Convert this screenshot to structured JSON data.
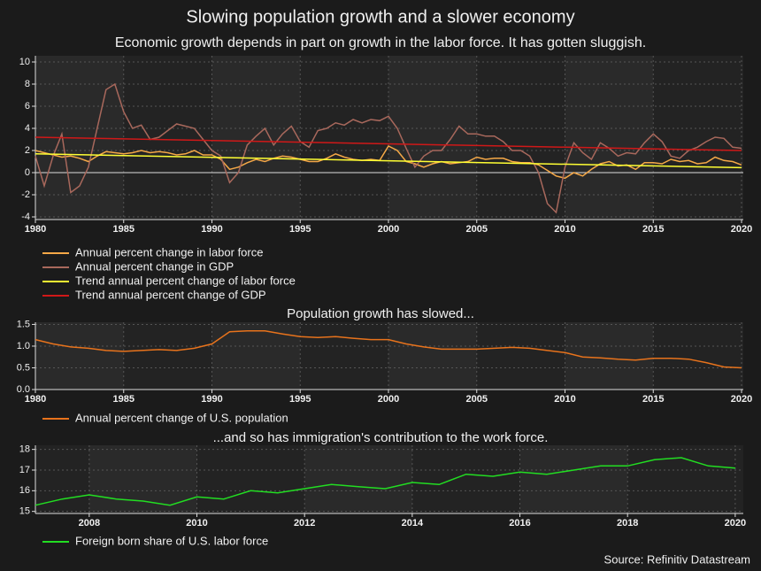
{
  "chart_data": [
    {
      "type": "line",
      "title": "Slowing population growth and a slower economy",
      "subtitle": "Economic growth depends in part on growth in the labor force. It has gotten sluggish.",
      "xlim": [
        1980,
        2020.1
      ],
      "xticks": [
        1980,
        1985,
        1990,
        1995,
        2000,
        2005,
        2010,
        2015,
        2020
      ],
      "ylim": [
        -4.24,
        10.56
      ],
      "yticks": [
        -4,
        -2,
        0,
        2,
        4,
        6,
        8,
        10
      ],
      "grid": true,
      "zero_line": true,
      "x": [
        1980,
        1980.5,
        1981,
        1981.5,
        1982,
        1982.5,
        1983,
        1983.5,
        1984,
        1984.5,
        1985,
        1985.5,
        1986,
        1986.5,
        1987,
        1987.5,
        1988,
        1988.5,
        1989,
        1989.5,
        1990,
        1990.5,
        1991,
        1991.5,
        1992,
        1992.5,
        1993,
        1993.5,
        1994,
        1994.5,
        1995,
        1995.5,
        1996,
        1996.5,
        1997,
        1997.5,
        1998,
        1998.5,
        1999,
        1999.5,
        2000,
        2000.5,
        2001,
        2001.5,
        2002,
        2002.5,
        2003,
        2003.5,
        2004,
        2004.5,
        2005,
        2005.5,
        2006,
        2006.5,
        2007,
        2007.5,
        2008,
        2008.5,
        2009,
        2009.5,
        2010,
        2010.5,
        2011,
        2011.5,
        2012,
        2012.5,
        2013,
        2013.5,
        2014,
        2014.5,
        2015,
        2015.5,
        2016,
        2016.5,
        2017,
        2017.5,
        2018,
        2018.5,
        2019,
        2019.5,
        2020
      ],
      "series": [
        {
          "name": "Annual percent change in labor force",
          "color": "#f5a847",
          "values": [
            2.0,
            1.8,
            1.6,
            1.4,
            1.5,
            1.3,
            1.0,
            1.5,
            1.9,
            1.8,
            1.7,
            1.8,
            2.0,
            1.8,
            1.9,
            1.8,
            1.6,
            1.7,
            2.0,
            1.6,
            1.6,
            1.2,
            0.3,
            0.5,
            0.9,
            1.2,
            1.0,
            1.3,
            1.5,
            1.4,
            1.2,
            1.0,
            1.0,
            1.3,
            1.7,
            1.4,
            1.2,
            1.1,
            1.2,
            1.1,
            2.4,
            2.0,
            1.0,
            0.8,
            0.5,
            0.8,
            1.0,
            0.8,
            0.9,
            1.0,
            1.4,
            1.2,
            1.3,
            1.3,
            1.0,
            0.9,
            0.9,
            0.7,
            0.2,
            -0.3,
            -0.5,
            0.0,
            -0.3,
            0.3,
            0.8,
            1.0,
            0.6,
            0.7,
            0.3,
            0.9,
            0.9,
            0.8,
            1.2,
            1.0,
            1.1,
            0.8,
            0.9,
            1.4,
            1.1,
            1.0,
            0.7
          ]
        },
        {
          "name": "Annual percent change in GDP",
          "color": "#a8685c",
          "values": [
            1.5,
            -1.2,
            1.5,
            3.5,
            -1.8,
            -1.2,
            0.5,
            4.0,
            7.5,
            8.0,
            5.5,
            4.0,
            4.3,
            3.0,
            3.2,
            3.8,
            4.4,
            4.2,
            4.0,
            3.0,
            2.0,
            1.5,
            -0.9,
            0.0,
            2.5,
            3.3,
            4.0,
            2.5,
            3.5,
            4.2,
            2.8,
            2.3,
            3.8,
            4.0,
            4.5,
            4.3,
            4.8,
            4.5,
            4.8,
            4.7,
            5.1,
            4.0,
            2.2,
            0.5,
            1.5,
            2.0,
            2.0,
            3.0,
            4.2,
            3.5,
            3.5,
            3.3,
            3.3,
            2.8,
            2.0,
            2.0,
            1.5,
            0.0,
            -2.8,
            -3.6,
            0.5,
            2.7,
            1.8,
            1.2,
            2.7,
            2.2,
            1.5,
            1.8,
            1.7,
            2.7,
            3.5,
            2.8,
            1.5,
            1.3,
            2.0,
            2.3,
            2.8,
            3.2,
            3.1,
            2.3,
            2.2
          ]
        },
        {
          "name": "Trend annual percent change of labor force",
          "color": "#ffff33",
          "x": [
            1980,
            2020
          ],
          "values": [
            1.7,
            0.45
          ]
        },
        {
          "name": "Trend annual percent change of GDP",
          "color": "#d01818",
          "x": [
            1980,
            2020
          ],
          "values": [
            3.2,
            2.0
          ]
        }
      ]
    },
    {
      "type": "line",
      "title": "Population growth has slowed...",
      "xlim": [
        1980,
        2020.1
      ],
      "xticks": [
        1980,
        1985,
        1990,
        1995,
        2000,
        2005,
        2010,
        2015,
        2020
      ],
      "ylim": [
        0,
        1.55
      ],
      "yticks": [
        {
          "value": 0,
          "label": "0.0"
        },
        {
          "value": 0.5,
          "label": "0.5"
        },
        {
          "value": 1,
          "label": "1.0"
        },
        {
          "value": 1.5,
          "label": "1.5"
        }
      ],
      "grid": true,
      "x": [
        1980,
        1981,
        1982,
        1983,
        1984,
        1985,
        1986,
        1987,
        1988,
        1989,
        1990,
        1991,
        1992,
        1993,
        1994,
        1995,
        1996,
        1997,
        1998,
        1999,
        2000,
        2001,
        2002,
        2003,
        2004,
        2005,
        2006,
        2007,
        2008,
        2009,
        2010,
        2011,
        2012,
        2013,
        2014,
        2015,
        2016,
        2017,
        2018,
        2019,
        2020
      ],
      "series": [
        {
          "name": "Annual percent change of U.S. population",
          "color": "#e8731c",
          "values": [
            1.15,
            1.05,
            0.98,
            0.95,
            0.9,
            0.88,
            0.9,
            0.92,
            0.9,
            0.95,
            1.05,
            1.33,
            1.35,
            1.35,
            1.28,
            1.22,
            1.2,
            1.22,
            1.18,
            1.15,
            1.15,
            1.05,
            0.98,
            0.93,
            0.93,
            0.93,
            0.95,
            0.97,
            0.95,
            0.9,
            0.85,
            0.75,
            0.73,
            0.7,
            0.68,
            0.72,
            0.72,
            0.7,
            0.62,
            0.52,
            0.5
          ]
        }
      ]
    },
    {
      "type": "line",
      "title": "...and so has immigration's contribution to the work force.",
      "source": "Source: Refinitiv Datastream",
      "xlim": [
        2007,
        2020.15
      ],
      "xticks": [
        2008,
        2010,
        2012,
        2014,
        2016,
        2018,
        2020
      ],
      "ylim": [
        14.9,
        18.2
      ],
      "yticks": [
        15,
        16,
        17,
        18
      ],
      "grid": true,
      "x": [
        2007,
        2007.5,
        2008,
        2008.5,
        2009,
        2009.5,
        2010,
        2010.5,
        2011,
        2011.5,
        2012,
        2012.5,
        2013,
        2013.5,
        2014,
        2014.5,
        2015,
        2015.5,
        2016,
        2016.5,
        2017,
        2017.5,
        2018,
        2018.5,
        2019,
        2019.5,
        2020
      ],
      "series": [
        {
          "name": "Foreign born share of U.S. labor force",
          "color": "#22dd22",
          "values": [
            15.3,
            15.6,
            15.8,
            15.6,
            15.5,
            15.3,
            15.7,
            15.6,
            16.0,
            15.9,
            16.1,
            16.3,
            16.2,
            16.1,
            16.4,
            16.3,
            16.8,
            16.7,
            16.9,
            16.8,
            17.0,
            17.2,
            17.2,
            17.5,
            17.6,
            17.2,
            17.1
          ]
        }
      ]
    }
  ]
}
